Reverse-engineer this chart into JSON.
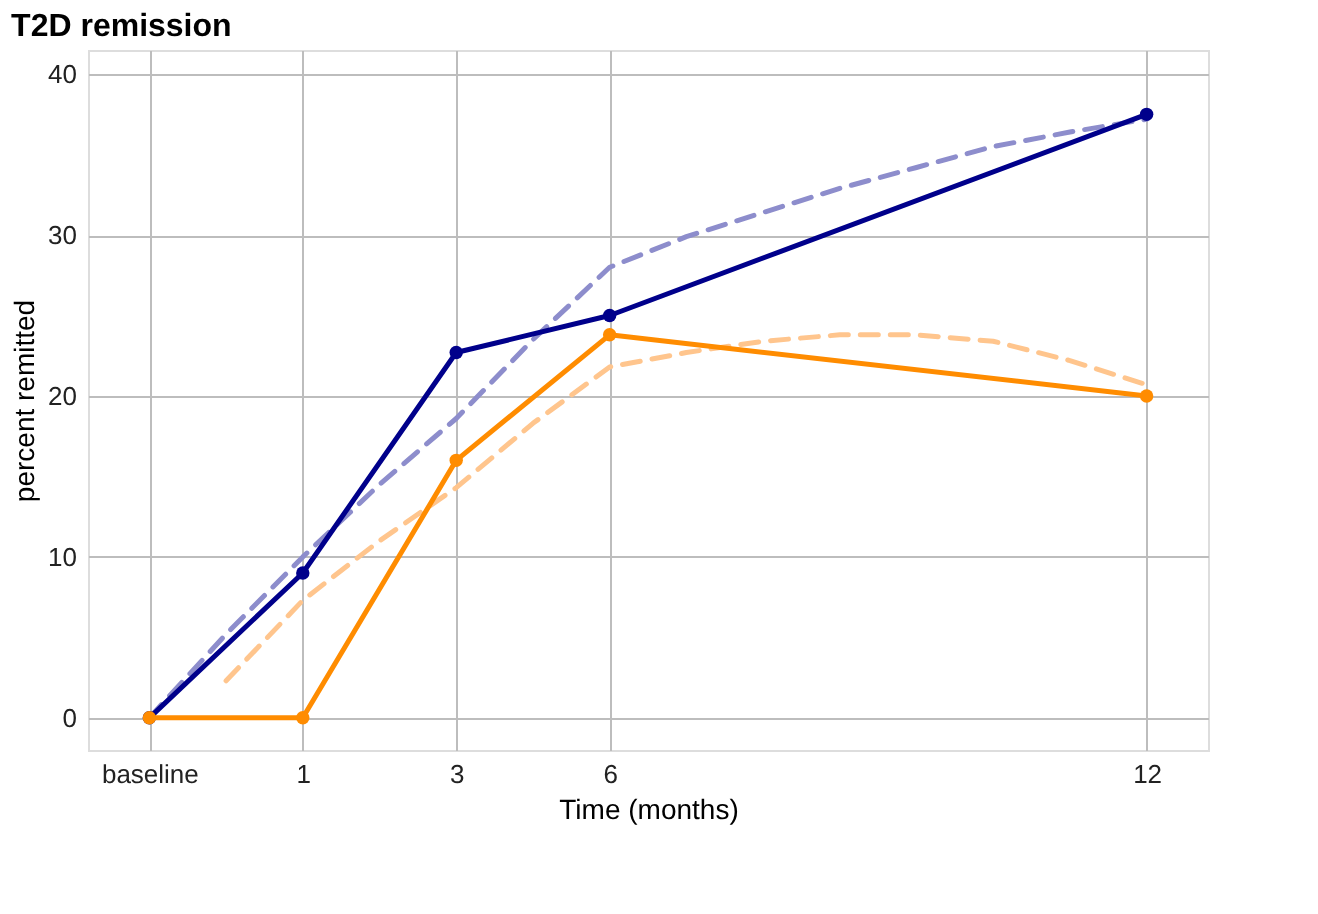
{
  "chart_data": {
    "type": "line",
    "title": "T2D remission",
    "xlabel": "Time (months)",
    "ylabel": "percent remitted",
    "categories": [
      "baseline",
      null,
      "1",
      null,
      "3",
      null,
      "6",
      null,
      null,
      null,
      null,
      null,
      null,
      "12"
    ],
    "ylim": [
      -2,
      41.5
    ],
    "yticks": [
      0,
      10,
      20,
      30,
      40
    ],
    "grid": true,
    "legend": false,
    "series": [
      {
        "color": "#8d8dcc",
        "line_style": "dashed",
        "marker": "none",
        "values": [
          0,
          5.2,
          10,
          14.5,
          18.6,
          23.5,
          28,
          29.9,
          31.4,
          32.9,
          34.2,
          35.5,
          36.4,
          37.2
        ]
      },
      {
        "color": "#ffc58d",
        "line_style": "dashed",
        "marker": "none",
        "values": [
          null,
          2.3,
          7.3,
          11,
          14.3,
          18.3,
          21.8,
          22.7,
          23.4,
          23.8,
          23.8,
          23.4,
          22.2,
          20.7
        ]
      },
      {
        "color": "#00008b",
        "line_style": "solid",
        "marker": "circle",
        "x": [
          "baseline",
          "1",
          "3",
          "6",
          "12"
        ],
        "values": [
          0,
          9,
          22.7,
          25,
          37.5
        ]
      },
      {
        "color": "#ff8c00",
        "line_style": "solid",
        "marker": "circle",
        "x": [
          "baseline",
          "1",
          "3",
          "6",
          "12"
        ],
        "values": [
          0,
          0,
          16,
          23.8,
          20
        ]
      }
    ]
  }
}
